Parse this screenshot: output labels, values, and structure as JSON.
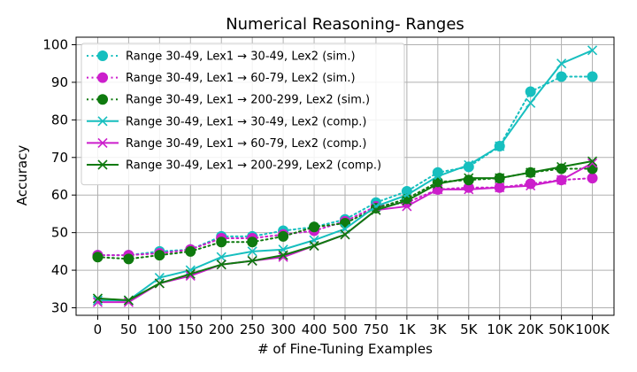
{
  "chart_data": {
    "type": "line",
    "title": "Numerical Reasoning- Ranges",
    "xlabel": "# of Fine-Tuning Examples",
    "ylabel": "Accuracy",
    "categories": [
      "0",
      "50",
      "100",
      "150",
      "200",
      "250",
      "300",
      "400",
      "500",
      "750",
      "1K",
      "3K",
      "5K",
      "10K",
      "20K",
      "50K",
      "100K"
    ],
    "ylim": [
      28,
      102
    ],
    "yticks": [
      30,
      40,
      50,
      60,
      70,
      80,
      90,
      100
    ],
    "grid": true,
    "legend_position": "top-left",
    "series": [
      {
        "name": "Range 30-49, Lex1 → 30-49, Lex2 (sim.)",
        "color": "#17bfbf",
        "marker": "circle",
        "dash": "dotted",
        "values": [
          44.0,
          44.0,
          45.0,
          45.5,
          49.0,
          49.0,
          50.5,
          51.5,
          53.5,
          58.0,
          61.0,
          66.0,
          67.5,
          73.0,
          87.5,
          91.5,
          91.5
        ]
      },
      {
        "name": "Range 30-49, Lex1 → 60-79, Lex2 (sim.)",
        "color": "#cc1fcc",
        "marker": "circle",
        "dash": "dotted",
        "values": [
          44.0,
          44.0,
          44.5,
          45.5,
          48.5,
          48.5,
          49.5,
          50.5,
          53.0,
          57.0,
          58.0,
          61.5,
          62.0,
          62.0,
          63.0,
          64.0,
          64.5
        ]
      },
      {
        "name": "Range 30-49, Lex1 → 200-299, Lex2 (sim.)",
        "color": "#0f7a0f",
        "marker": "circle",
        "dash": "dotted",
        "values": [
          43.5,
          43.0,
          44.0,
          45.0,
          47.5,
          47.5,
          49.0,
          51.5,
          52.5,
          56.5,
          59.0,
          63.5,
          64.0,
          64.5,
          66.0,
          67.0,
          67.0
        ]
      },
      {
        "name": "Range 30-49, Lex1 → 30-49, Lex2 (comp.)",
        "color": "#17bfbf",
        "marker": "x",
        "dash": "solid",
        "values": [
          32.0,
          32.0,
          38.0,
          40.0,
          43.5,
          45.0,
          45.5,
          48.0,
          51.0,
          57.0,
          60.0,
          65.0,
          68.0,
          73.0,
          84.5,
          95.0,
          98.5
        ]
      },
      {
        "name": "Range 30-49, Lex1 → 60-79, Lex2 (comp.)",
        "color": "#cc1fcc",
        "marker": "x",
        "dash": "solid",
        "values": [
          31.5,
          31.5,
          36.5,
          38.5,
          41.5,
          42.5,
          43.5,
          46.5,
          49.5,
          56.0,
          57.0,
          61.5,
          61.5,
          62.0,
          62.5,
          64.0,
          68.5
        ]
      },
      {
        "name": "Range 30-49, Lex1 → 200-299, Lex2 (comp.)",
        "color": "#0f7a0f",
        "marker": "x",
        "dash": "solid",
        "values": [
          32.5,
          32.0,
          36.5,
          39.0,
          41.5,
          42.5,
          44.0,
          46.5,
          49.5,
          56.0,
          58.5,
          63.0,
          64.5,
          64.5,
          66.0,
          67.5,
          69.0
        ]
      }
    ]
  }
}
